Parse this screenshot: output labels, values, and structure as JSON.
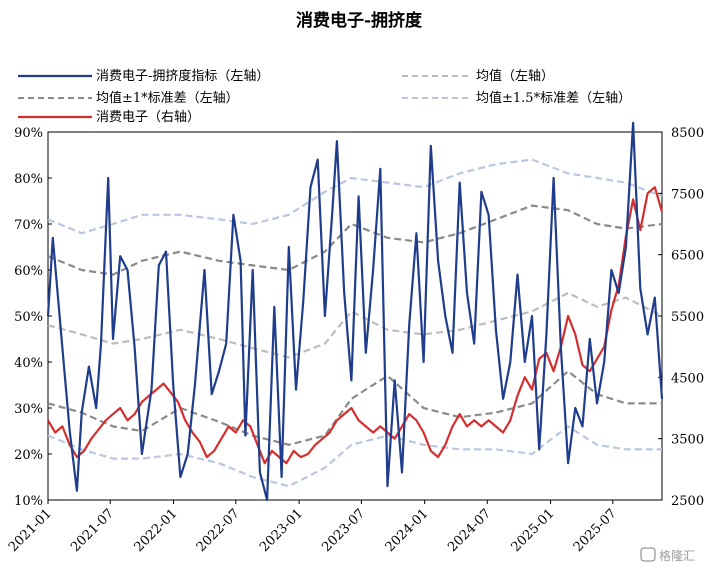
{
  "chart_data": {
    "type": "line",
    "title": "消费电子-拥挤度",
    "x_ticks": [
      "2021-01",
      "2021-07",
      "2022-01",
      "2022-07",
      "2023-01",
      "2023-07",
      "2024-01",
      "2024-07",
      "2025-01",
      "2025-07"
    ],
    "y_left": {
      "ticks": [
        "10%",
        "20%",
        "30%",
        "40%",
        "50%",
        "60%",
        "70%",
        "80%",
        "90%"
      ],
      "min": 10,
      "max": 90
    },
    "y_right": {
      "ticks": [
        "2500",
        "3500",
        "4500",
        "5500",
        "6500",
        "7500",
        "8500"
      ],
      "min": 2500,
      "max": 8500
    },
    "x_range": [
      "2021-01-01",
      "2025-11-21"
    ],
    "legend_position": "top",
    "series": [
      {
        "name": "消费电子-拥挤度指标（左轴）",
        "axis": "left",
        "color": "#1f3d8c",
        "style": "solid",
        "x": [
          "2021-01-01",
          "2021-01-15",
          "2021-02-12",
          "2021-03-05",
          "2021-03-26",
          "2021-04-09",
          "2021-04-30",
          "2021-05-21",
          "2021-06-04",
          "2021-06-25",
          "2021-07-09",
          "2021-07-30",
          "2021-08-20",
          "2021-09-10",
          "2021-10-01",
          "2021-10-29",
          "2021-11-19",
          "2021-12-10",
          "2021-12-31",
          "2022-01-21",
          "2022-02-11",
          "2022-03-04",
          "2022-04-01",
          "2022-04-22",
          "2022-05-13",
          "2022-06-03",
          "2022-06-24",
          "2022-07-15",
          "2022-07-29",
          "2022-08-19",
          "2022-09-09",
          "2022-09-30",
          "2022-10-21",
          "2022-11-11",
          "2022-12-02",
          "2022-12-23",
          "2023-01-13",
          "2023-02-03",
          "2023-02-24",
          "2023-03-17",
          "2023-04-07",
          "2023-04-21",
          "2023-05-12",
          "2023-06-02",
          "2023-06-23",
          "2023-07-14",
          "2023-08-04",
          "2023-08-25",
          "2023-09-15",
          "2023-10-06",
          "2023-10-27",
          "2023-11-17",
          "2023-12-08",
          "2023-12-29",
          "2024-01-19",
          "2024-02-09",
          "2024-03-01",
          "2024-03-22",
          "2024-04-12",
          "2024-05-03",
          "2024-05-24",
          "2024-06-14",
          "2024-07-05",
          "2024-07-26",
          "2024-08-16",
          "2024-09-06",
          "2024-09-27",
          "2024-10-18",
          "2024-11-08",
          "2024-11-29",
          "2024-12-20",
          "2025-01-10",
          "2025-01-31",
          "2025-02-21",
          "2025-03-14",
          "2025-04-04",
          "2025-04-25",
          "2025-05-16",
          "2025-06-06",
          "2025-06-27",
          "2025-07-18",
          "2025-08-08",
          "2025-08-29",
          "2025-09-19",
          "2025-10-10",
          "2025-10-31",
          "2025-11-21"
        ],
        "y": [
          50,
          67,
          43,
          25,
          12,
          29,
          39,
          30,
          44,
          80,
          45,
          63,
          60,
          43,
          20,
          34,
          61,
          64,
          35,
          15,
          20,
          35,
          60,
          33,
          38,
          44,
          72,
          62,
          24,
          60,
          16,
          10,
          52,
          15,
          65,
          34,
          53,
          78,
          84,
          50,
          72,
          88,
          55,
          36,
          76,
          42,
          60,
          82,
          13,
          36,
          16,
          48,
          68,
          40,
          87,
          62,
          50,
          42,
          79,
          55,
          44,
          77,
          72,
          47,
          32,
          40,
          59,
          40,
          50,
          21,
          46,
          80,
          43,
          18,
          30,
          26,
          45,
          31,
          40,
          60,
          55,
          65,
          92,
          56,
          46,
          54,
          32
        ]
      },
      {
        "name": "均值（左轴）",
        "axis": "left",
        "color": "#bcbcbc",
        "style": "dash",
        "x": [
          "2021-01-01",
          "2021-04-09",
          "2021-07-09",
          "2021-10-01",
          "2022-01-21",
          "2022-05-13",
          "2022-08-19",
          "2022-12-02",
          "2023-03-17",
          "2023-06-02",
          "2023-09-15",
          "2023-12-29",
          "2024-04-12",
          "2024-07-26",
          "2024-11-08",
          "2025-02-21",
          "2025-05-16",
          "2025-08-08",
          "2025-11-21"
        ],
        "y": [
          48,
          46,
          44,
          45,
          47,
          45,
          43,
          41,
          44,
          51,
          47,
          46,
          47,
          49,
          51,
          55,
          52,
          54,
          50
        ]
      },
      {
        "name": "均值±1*标准差（左轴）",
        "axis": "left",
        "color": "#8a8a8a",
        "style": "dash",
        "x": [
          "2021-01-01",
          "2021-04-09",
          "2021-07-09",
          "2021-10-01",
          "2022-01-21",
          "2022-05-13",
          "2022-08-19",
          "2022-12-02",
          "2023-03-17",
          "2023-06-02",
          "2023-09-15",
          "2023-12-29",
          "2024-04-12",
          "2024-07-26",
          "2024-11-08",
          "2025-02-21",
          "2025-05-16",
          "2025-08-08",
          "2025-11-21"
        ],
        "y": [
          63,
          60,
          59,
          62,
          64,
          62,
          61,
          60,
          64,
          70,
          67,
          66,
          68,
          71,
          74,
          73,
          70,
          69,
          70
        ]
      },
      {
        "name": "均值±1*标准差（左轴）",
        "axis": "left",
        "color": "#8a8a8a",
        "style": "dash",
        "x": [
          "2021-01-01",
          "2021-04-09",
          "2021-07-09",
          "2021-10-01",
          "2022-01-21",
          "2022-05-13",
          "2022-08-19",
          "2022-12-02",
          "2023-03-17",
          "2023-06-02",
          "2023-09-15",
          "2023-12-29",
          "2024-04-12",
          "2024-07-26",
          "2024-11-08",
          "2025-02-21",
          "2025-05-16",
          "2025-08-08",
          "2025-11-21"
        ],
        "y": [
          31,
          29,
          26,
          25,
          30,
          27,
          24,
          22,
          24,
          32,
          37,
          30,
          28,
          29,
          31,
          38,
          33,
          31,
          31
        ]
      },
      {
        "name": "均值±1.5*标准差（左轴）",
        "axis": "left",
        "color": "#b9c7e0",
        "style": "dash",
        "x": [
          "2021-01-01",
          "2021-04-09",
          "2021-07-09",
          "2021-10-01",
          "2022-01-21",
          "2022-05-13",
          "2022-08-19",
          "2022-12-02",
          "2023-03-17",
          "2023-06-02",
          "2023-09-15",
          "2023-12-29",
          "2024-04-12",
          "2024-07-26",
          "2024-11-08",
          "2025-02-21",
          "2025-05-16",
          "2025-08-08",
          "2025-11-21"
        ],
        "y": [
          71,
          68,
          70,
          72,
          72,
          71,
          70,
          72,
          77,
          80,
          79,
          78,
          81,
          83,
          84,
          81,
          80,
          79,
          76
        ]
      },
      {
        "name": "均值±1.5*标准差（左轴）",
        "axis": "left",
        "color": "#b9c7e0",
        "style": "dash",
        "x": [
          "2021-01-01",
          "2021-04-09",
          "2021-07-09",
          "2021-10-01",
          "2022-01-21",
          "2022-05-13",
          "2022-08-19",
          "2022-12-02",
          "2023-03-17",
          "2023-06-02",
          "2023-09-15",
          "2023-12-29",
          "2024-04-12",
          "2024-07-26",
          "2024-11-08",
          "2025-02-21",
          "2025-05-16",
          "2025-08-08",
          "2025-11-21"
        ],
        "y": [
          24,
          21,
          19,
          19,
          20,
          18,
          15,
          13,
          17,
          22,
          24,
          22,
          21,
          21,
          20,
          26,
          22,
          21,
          21
        ]
      },
      {
        "name": "消费电子（右轴）",
        "axis": "right",
        "color": "#d42f2f",
        "style": "solid",
        "x": [
          "2021-01-01",
          "2021-01-22",
          "2021-02-12",
          "2021-03-05",
          "2021-03-26",
          "2021-04-16",
          "2021-05-07",
          "2021-05-28",
          "2021-06-18",
          "2021-07-09",
          "2021-07-30",
          "2021-08-20",
          "2021-09-10",
          "2021-10-01",
          "2021-10-22",
          "2021-11-12",
          "2021-12-03",
          "2021-12-24",
          "2022-01-14",
          "2022-02-04",
          "2022-02-25",
          "2022-03-18",
          "2022-04-08",
          "2022-04-29",
          "2022-05-20",
          "2022-06-10",
          "2022-07-01",
          "2022-07-22",
          "2022-08-12",
          "2022-09-02",
          "2022-09-23",
          "2022-10-14",
          "2022-11-04",
          "2022-11-25",
          "2022-12-16",
          "2023-01-06",
          "2023-01-27",
          "2023-02-17",
          "2023-03-10",
          "2023-03-31",
          "2023-04-21",
          "2023-05-12",
          "2023-06-02",
          "2023-06-23",
          "2023-07-14",
          "2023-08-04",
          "2023-08-25",
          "2023-09-15",
          "2023-10-06",
          "2023-10-27",
          "2023-11-17",
          "2023-12-08",
          "2023-12-29",
          "2024-01-19",
          "2024-02-09",
          "2024-03-01",
          "2024-03-22",
          "2024-04-12",
          "2024-05-03",
          "2024-05-24",
          "2024-06-14",
          "2024-07-05",
          "2024-07-26",
          "2024-08-16",
          "2024-09-06",
          "2024-09-27",
          "2024-10-18",
          "2024-11-08",
          "2024-11-29",
          "2024-12-20",
          "2025-01-10",
          "2025-01-31",
          "2025-02-21",
          "2025-03-14",
          "2025-04-04",
          "2025-04-25",
          "2025-05-16",
          "2025-06-06",
          "2025-06-27",
          "2025-07-18",
          "2025-08-08",
          "2025-08-29",
          "2025-09-19",
          "2025-10-10",
          "2025-10-31",
          "2025-11-21"
        ],
        "y": [
          3800,
          3600,
          3700,
          3400,
          3200,
          3300,
          3500,
          3650,
          3800,
          3900,
          4000,
          3800,
          3900,
          4100,
          4200,
          4300,
          4400,
          4250,
          4100,
          3800,
          3600,
          3450,
          3200,
          3300,
          3500,
          3700,
          3600,
          3800,
          3700,
          3400,
          3100,
          3300,
          3200,
          3100,
          3300,
          3200,
          3250,
          3400,
          3500,
          3600,
          3800,
          3900,
          4000,
          3800,
          3700,
          3600,
          3700,
          3600,
          3500,
          3700,
          3900,
          3800,
          3600,
          3300,
          3200,
          3400,
          3700,
          3900,
          3700,
          3800,
          3700,
          3800,
          3700,
          3600,
          3800,
          4200,
          4500,
          4300,
          4800,
          4900,
          4600,
          5000,
          5500,
          5200,
          4700,
          4600,
          4800,
          5000,
          5600,
          6000,
          6800,
          7400,
          6900,
          7500,
          7600,
          7200
        ]
      }
    ],
    "legend": [
      "消费电子-拥挤度指标（左轴）",
      "均值（左轴）",
      "均值±1*标准差（左轴）",
      "均值±1.5*标准差（左轴）",
      "消费电子（右轴）"
    ]
  },
  "watermark": "格隆汇"
}
